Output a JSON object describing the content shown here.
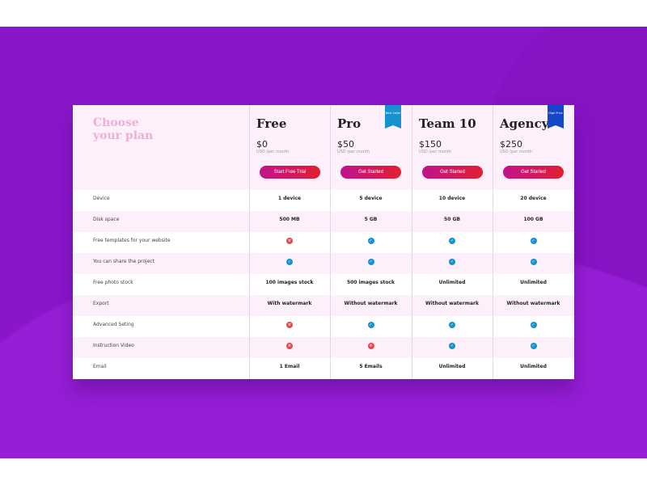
{
  "title_line1": "Choose",
  "title_line2": "your plan",
  "colors": {
    "background": "#8a16c9",
    "accent_start": "#c0128f",
    "accent_end": "#e21f2f",
    "check": "#1592cf",
    "cross": "#e8484a",
    "ribbon_pro": "#1592cf",
    "ribbon_agency": "#1646c8"
  },
  "plans": [
    {
      "name": "Free",
      "price": "$0",
      "period": "USD /per month",
      "button": "Start Free Trial",
      "ribbon": null
    },
    {
      "name": "Pro",
      "price": "$50",
      "period": "USD /per month",
      "button": "Get Started",
      "ribbon": "Best Seller"
    },
    {
      "name": "Team 10",
      "price": "$150",
      "period": "USD /per month",
      "button": "Get Started",
      "ribbon": null
    },
    {
      "name": "Agency",
      "price": "$250",
      "period": "USD /per month",
      "button": "Get Started",
      "ribbon": "High Price"
    }
  ],
  "features": [
    {
      "label": "Device",
      "values": [
        "1 device",
        "5 device",
        "10 device",
        "20 device"
      ]
    },
    {
      "label": "Disk space",
      "values": [
        "500 MB",
        "5 GB",
        "50 GB",
        "100 GB"
      ]
    },
    {
      "label": "Free templates for your website",
      "values": [
        false,
        true,
        true,
        true
      ]
    },
    {
      "label": "You can share the project",
      "values": [
        true,
        true,
        true,
        true
      ]
    },
    {
      "label": "Free photo stock",
      "values": [
        "100 images stock",
        "500 images stock",
        "Unlimited",
        "Unlimited"
      ]
    },
    {
      "label": "Export",
      "values": [
        "With watermark",
        "Without watermark",
        "Without watermark",
        "Without watermark"
      ]
    },
    {
      "label": "Advanced Seting",
      "values": [
        false,
        true,
        true,
        true
      ]
    },
    {
      "label": "Instruction Video",
      "values": [
        false,
        false,
        true,
        true
      ]
    },
    {
      "label": "Email",
      "values": [
        "1 Email",
        "5 Emails",
        "Unlimited",
        "Unlimited"
      ]
    }
  ]
}
